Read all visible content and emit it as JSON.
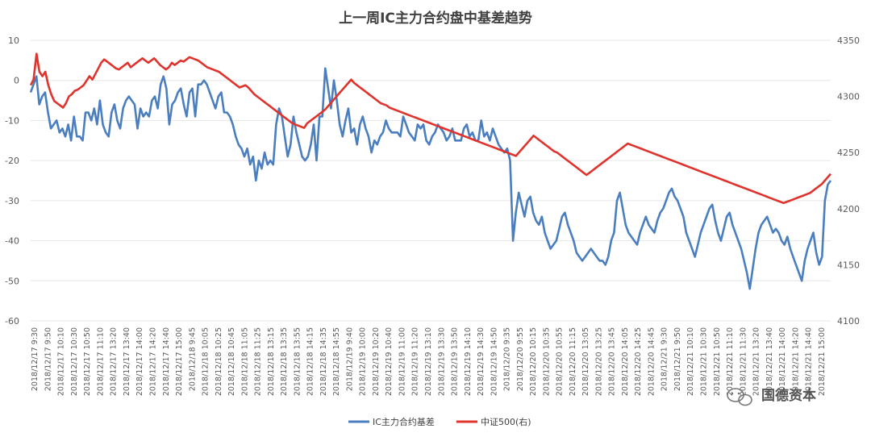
{
  "chart_data": {
    "type": "line",
    "title": "上一周IC主力合约盘中基差趋势",
    "y_left": {
      "min": -60,
      "max": 10,
      "ticks": [
        10,
        0,
        -10,
        -20,
        -30,
        -40,
        -50,
        -60
      ]
    },
    "y_right": {
      "min": 4100,
      "max": 4350,
      "ticks": [
        4350,
        4300,
        4250,
        4200,
        4150,
        4100
      ]
    },
    "x_labels": [
      "2018/12/17 9:30",
      "2018/12/17 9:50",
      "2018/12/17 10:10",
      "2018/12/17 10:30",
      "2018/12/17 10:50",
      "2018/12/17 11:10",
      "2018/12/17 13:20",
      "2018/12/17 13:40",
      "2018/12/17 14:00",
      "2018/12/17 14:20",
      "2018/12/17 14:40",
      "2018/12/17 15:00",
      "2018/12/18 9:45",
      "2018/12/18 10:05",
      "2018/12/18 10:25",
      "2018/12/18 10:45",
      "2018/12/18 11:05",
      "2018/12/18 11:25",
      "2018/12/18 13:15",
      "2018/12/18 13:35",
      "2018/12/18 13:55",
      "2018/12/18 14:15",
      "2018/12/18 14:35",
      "2018/12/18 14:55",
      "2018/12/19 9:40",
      "2018/12/19 10:00",
      "2018/12/19 10:20",
      "2018/12/19 10:40",
      "2018/12/19 11:00",
      "2018/12/19 11:20",
      "2018/12/19 13:10",
      "2018/12/19 13:30",
      "2018/12/19 13:50",
      "2018/12/19 14:10",
      "2018/12/19 14:30",
      "2018/12/19 14:50",
      "2018/12/20 9:35",
      "2018/12/20 9:55",
      "2018/12/20 10:15",
      "2018/12/20 10:35",
      "2018/12/20 10:55",
      "2018/12/20 11:15",
      "2018/12/20 13:05",
      "2018/12/20 13:25",
      "2018/12/20 13:45",
      "2018/12/20 14:05",
      "2018/12/20 14:25",
      "2018/12/20 14:45",
      "2018/12/21 9:30",
      "2018/12/21 9:50",
      "2018/12/21 10:10",
      "2018/12/21 10:30",
      "2018/12/21 10:50",
      "2018/12/21 11:10",
      "2018/12/21 11:30",
      "2018/12/21 13:20",
      "2018/12/21 13:40",
      "2018/12/21 14:00",
      "2018/12/21 14:20",
      "2018/12/21 14:40",
      "2018/12/21 15:00"
    ],
    "x_label_step": 4,
    "series": [
      {
        "name": "IC主力合约基差",
        "axis": "left",
        "color": "#4a7ebf",
        "values": [
          -3,
          -1,
          1,
          -6,
          -4,
          -3,
          -8,
          -12,
          -11,
          -10,
          -13,
          -12,
          -14,
          -11,
          -15,
          -9,
          -14,
          -14,
          -15,
          -8,
          -8,
          -10,
          -7,
          -11,
          -5,
          -11,
          -13,
          -14,
          -8,
          -6,
          -10,
          -12,
          -7,
          -5,
          -4,
          -5,
          -6,
          -12,
          -7,
          -9,
          -8,
          -9,
          -5,
          -4,
          -7,
          -1,
          1,
          -2,
          -11,
          -6,
          -5,
          -3,
          -2,
          -6,
          -9,
          -3,
          -2,
          -9,
          -1,
          -1,
          0,
          -1,
          -3,
          -5,
          -7,
          -4,
          -3,
          -8,
          -8,
          -9,
          -11,
          -14,
          -16,
          -17,
          -19,
          -17,
          -21,
          -19,
          -25,
          -20,
          -22,
          -18,
          -21,
          -20,
          -21,
          -11,
          -7,
          -9,
          -14,
          -19,
          -16,
          -9,
          -13,
          -16,
          -19,
          -20,
          -19,
          -16,
          -11,
          -20,
          -9,
          -9,
          3,
          -2,
          -7,
          0,
          -5,
          -11,
          -14,
          -10,
          -7,
          -13,
          -12,
          -16,
          -11,
          -9,
          -12,
          -14,
          -18,
          -15,
          -16,
          -14,
          -13,
          -10,
          -12,
          -13,
          -13,
          -13,
          -14,
          -9,
          -11,
          -13,
          -14,
          -15,
          -11,
          -12,
          -11,
          -15,
          -16,
          -14,
          -13,
          -11,
          -12,
          -13,
          -15,
          -14,
          -12,
          -15,
          -15,
          -15,
          -12,
          -11,
          -14,
          -13,
          -15,
          -15,
          -10,
          -14,
          -13,
          -15,
          -12,
          -14,
          -16,
          -17,
          -18,
          -17,
          -20,
          -40,
          -33,
          -28,
          -31,
          -34,
          -30,
          -29,
          -33,
          -35,
          -36,
          -34,
          -38,
          -40,
          -42,
          -41,
          -40,
          -37,
          -34,
          -33,
          -36,
          -38,
          -40,
          -43,
          -44,
          -45,
          -44,
          -43,
          -42,
          -43,
          -44,
          -45,
          -45,
          -46,
          -44,
          -40,
          -38,
          -30,
          -28,
          -32,
          -36,
          -38,
          -39,
          -40,
          -41,
          -38,
          -36,
          -34,
          -36,
          -37,
          -38,
          -35,
          -33,
          -32,
          -30,
          -28,
          -27,
          -29,
          -30,
          -32,
          -34,
          -38,
          -40,
          -42,
          -44,
          -41,
          -38,
          -36,
          -34,
          -32,
          -31,
          -35,
          -38,
          -40,
          -37,
          -34,
          -33,
          -36,
          -38,
          -40,
          -42,
          -45,
          -48,
          -52,
          -47,
          -42,
          -38,
          -36,
          -35,
          -34,
          -36,
          -38,
          -37,
          -38,
          -40,
          -41,
          -39,
          -42,
          -44,
          -46,
          -48,
          -50,
          -45,
          -42,
          -40,
          -38,
          -43,
          -46,
          -44,
          -30,
          -26,
          -25
        ],
        "shown_raw_values_note": ""
      },
      {
        "name": "中证500(右)",
        "axis": "right",
        "color": "#e0332d",
        "values": [
          4310,
          4315,
          4338,
          4322,
          4318,
          4322,
          4310,
          4302,
          4296,
          4294,
          4292,
          4290,
          4294,
          4300,
          4302,
          4305,
          4306,
          4308,
          4310,
          4314,
          4318,
          4315,
          4320,
          4325,
          4330,
          4333,
          4331,
          4329,
          4327,
          4325,
          4324,
          4326,
          4328,
          4330,
          4326,
          4328,
          4330,
          4332,
          4334,
          4332,
          4330,
          4332,
          4334,
          4331,
          4328,
          4326,
          4324,
          4326,
          4330,
          4328,
          4330,
          4332,
          4331,
          4333,
          4335,
          4334,
          4333,
          4332,
          4330,
          4328,
          4326,
          4325,
          4324,
          4323,
          4322,
          4320,
          4318,
          4316,
          4314,
          4312,
          4310,
          4308,
          4309,
          4310,
          4308,
          4305,
          4302,
          4300,
          4298,
          4296,
          4294,
          4292,
          4290,
          4288,
          4286,
          4284,
          4282,
          4280,
          4278,
          4276,
          4275,
          4274,
          4273,
          4272,
          4276,
          4278,
          4280,
          4282,
          4284,
          4286,
          4288,
          4291,
          4294,
          4297,
          4300,
          4303,
          4306,
          4309,
          4312,
          4315,
          4312,
          4310,
          4308,
          4306,
          4304,
          4302,
          4300,
          4298,
          4296,
          4294,
          4293,
          4292,
          4290,
          4289,
          4288,
          4287,
          4286,
          4285,
          4284,
          4283,
          4282,
          4281,
          4280,
          4279,
          4278,
          4277,
          4276,
          4275,
          4274,
          4273,
          4272,
          4271,
          4270,
          4269,
          4268,
          4267,
          4266,
          4265,
          4264,
          4263,
          4262,
          4261,
          4260,
          4259,
          4258,
          4257,
          4256,
          4255,
          4254,
          4253,
          4252,
          4251,
          4250,
          4249,
          4248,
          4247,
          4250,
          4253,
          4256,
          4259,
          4262,
          4265,
          4263,
          4261,
          4259,
          4257,
          4255,
          4253,
          4251,
          4250,
          4248,
          4246,
          4244,
          4242,
          4240,
          4238,
          4236,
          4234,
          4232,
          4230,
          4232,
          4234,
          4236,
          4238,
          4240,
          4242,
          4244,
          4246,
          4248,
          4250,
          4252,
          4254,
          4256,
          4258,
          4257,
          4256,
          4255,
          4254,
          4253,
          4252,
          4251,
          4250,
          4249,
          4248,
          4247,
          4246,
          4245,
          4244,
          4243,
          4242,
          4241,
          4240,
          4239,
          4238,
          4237,
          4236,
          4235,
          4234,
          4233,
          4232,
          4231,
          4230,
          4229,
          4228,
          4227,
          4226,
          4225,
          4224,
          4223,
          4222,
          4221,
          4220,
          4219,
          4218,
          4217,
          4216,
          4215,
          4214,
          4213,
          4212,
          4211,
          4210,
          4209,
          4208,
          4207,
          4206,
          4205,
          4206,
          4207,
          4208,
          4209,
          4210,
          4211,
          4212,
          4213,
          4214,
          4216,
          4218,
          4220,
          4222,
          4225,
          4228,
          4231
        ]
      }
    ],
    "legend": [
      "IC主力合约基差",
      "中证500(右)"
    ],
    "legend_position": "bottom",
    "grid": true
  },
  "watermark": {
    "text": "国德资本",
    "icon": "wechat-icon"
  }
}
